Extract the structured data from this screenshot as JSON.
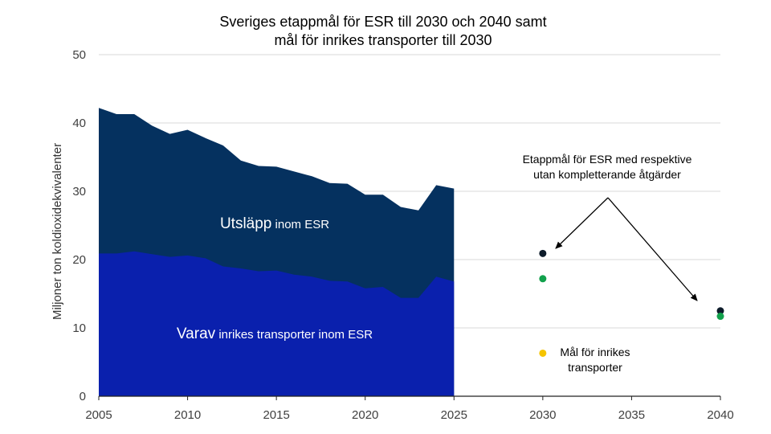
{
  "chart_data": {
    "type": "area",
    "title_lines": [
      "Sveriges etappmål för ESR till 2030 och 2040 samt",
      "mål för inrikes transporter till 2030"
    ],
    "ylabel": "Miljoner ton koldioxidekvivalenter",
    "xlabel": "",
    "xlim": [
      2005,
      2040
    ],
    "ylim": [
      0,
      50
    ],
    "x_ticks": [
      2005,
      2010,
      2015,
      2020,
      2025,
      2030,
      2035,
      2040
    ],
    "y_ticks": [
      0,
      10,
      20,
      30,
      40,
      50
    ],
    "grid": true,
    "x": [
      2005,
      2006,
      2007,
      2008,
      2009,
      2010,
      2011,
      2012,
      2013,
      2014,
      2015,
      2016,
      2017,
      2018,
      2019,
      2020,
      2021,
      2022,
      2023,
      2024,
      2025
    ],
    "series": [
      {
        "name": "Utsläpp inom ESR",
        "label_main": "Utsläpp",
        "label_rest": " inom ESR",
        "color": "#05315f",
        "values": [
          42.2,
          41.3,
          41.3,
          39.6,
          38.4,
          39.0,
          37.8,
          36.7,
          34.5,
          33.7,
          33.6,
          32.9,
          32.2,
          31.2,
          31.1,
          29.5,
          29.5,
          27.7,
          27.2,
          30.9,
          30.4
        ]
      },
      {
        "name": "Varav inrikes transporter inom ESR",
        "label_main": "Varav",
        "label_rest": " inrikes transporter inom ESR",
        "color": "#0a20ad",
        "values": [
          20.9,
          20.9,
          21.2,
          20.8,
          20.4,
          20.6,
          20.2,
          19.0,
          18.7,
          18.3,
          18.4,
          17.8,
          17.5,
          16.9,
          16.8,
          15.8,
          16.0,
          14.4,
          14.4,
          17.5,
          16.8
        ]
      }
    ],
    "points": [
      {
        "x": 2030,
        "y": 20.9,
        "color": "#0d1b2a"
      },
      {
        "x": 2030,
        "y": 17.2,
        "color": "#12a14c"
      },
      {
        "x": 2040,
        "y": 12.5,
        "color": "#0d1b2a"
      },
      {
        "x": 2040,
        "y": 11.7,
        "color": "#12a14c"
      },
      {
        "x": 2030,
        "y": 6.3,
        "color": "#f5c400"
      }
    ],
    "annotations": [
      {
        "lines": [
          "Etappmål för ESR med respektive",
          "utan kompletterande åtgärder"
        ]
      },
      {
        "lines": [
          "Mål för inrikes",
          "transporter"
        ]
      }
    ]
  }
}
